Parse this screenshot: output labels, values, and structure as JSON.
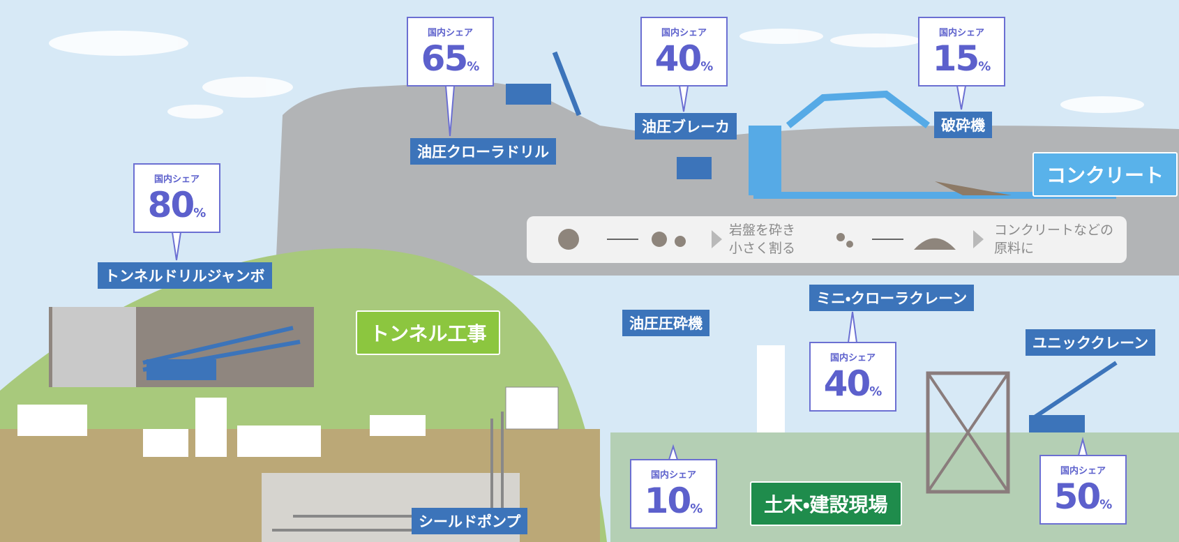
{
  "callouts": [
    {
      "share_label": "国内シェア",
      "share": "65",
      "unit": "%",
      "product": "油圧クローラドリル"
    },
    {
      "share_label": "国内シェア",
      "share": "40",
      "unit": "%",
      "product": "油圧ブレーカ"
    },
    {
      "share_label": "国内シェア",
      "share": "15",
      "unit": "%",
      "product": "破砕機"
    },
    {
      "share_label": "国内シェア",
      "share": "80",
      "unit": "%",
      "product": "トンネルドリルジャンボ"
    },
    {
      "share_label": "国内シェア",
      "share": "40",
      "unit": "%",
      "product": "ミニ・クローラクレーン"
    },
    {
      "share_label": "国内シェア",
      "share": "10",
      "unit": "%",
      "product": "油圧圧砕機"
    },
    {
      "share_label": "国内シェア",
      "share": "50",
      "unit": "%",
      "product": "ユニッククレーン"
    }
  ],
  "other_products": [
    "シールドポンプ"
  ],
  "sections": [
    "コンクリート",
    "トンネル工事",
    "土木・建設現場"
  ],
  "process": {
    "step1": [
      "岩盤を砕き",
      "小さく割る"
    ],
    "step2": [
      "コンクリートなどの",
      "原料に"
    ]
  }
}
